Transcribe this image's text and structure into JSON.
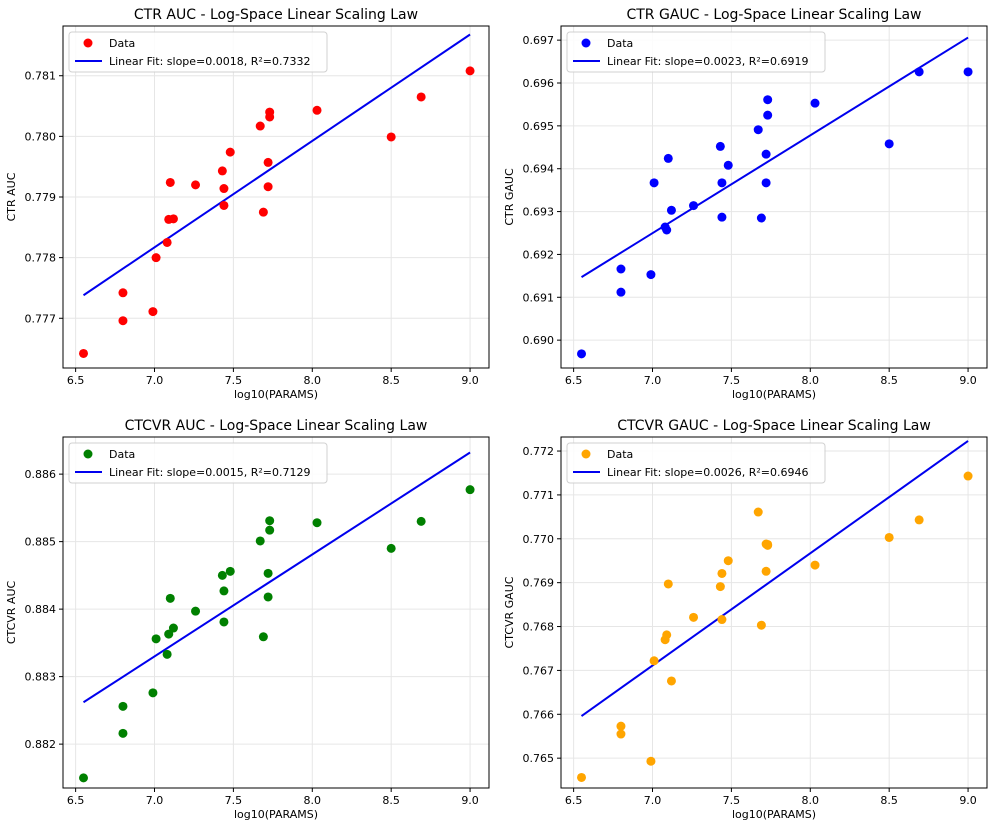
{
  "chart_data": [
    {
      "type": "scatter",
      "title": "CTR AUC - Log-Space Linear Scaling Law",
      "xlabel": "log10(PARAMS)",
      "ylabel": "CTR AUC",
      "xlim": [
        6.42,
        9.12
      ],
      "ylim": [
        0.77618,
        0.78182
      ],
      "xticks": [
        6.5,
        7.0,
        7.5,
        8.0,
        8.5,
        9.0
      ],
      "xtick_labels": [
        "6.5",
        "7.0",
        "7.5",
        "8.0",
        "8.5",
        "9.0"
      ],
      "yticks": [
        0.777,
        0.778,
        0.779,
        0.78,
        0.781
      ],
      "ytick_labels": [
        "0.777",
        "0.778",
        "0.779",
        "0.780",
        "0.781"
      ],
      "grid": true,
      "legend_position": "top-left",
      "point_color": "#ff0000",
      "line_color": "#0000ee",
      "series": [
        {
          "name": "Data",
          "kind": "scatter",
          "points": [
            [
              6.55,
              0.77642
            ],
            [
              6.8,
              0.77742
            ],
            [
              6.8,
              0.77696
            ],
            [
              6.99,
              0.77711
            ],
            [
              7.01,
              0.778
            ],
            [
              7.08,
              0.77825
            ],
            [
              7.09,
              0.77863
            ],
            [
              7.1,
              0.77924
            ],
            [
              7.12,
              0.77864
            ],
            [
              7.26,
              0.7792
            ],
            [
              7.43,
              0.77943
            ],
            [
              7.44,
              0.77914
            ],
            [
              7.44,
              0.77886
            ],
            [
              7.48,
              0.77974
            ],
            [
              7.67,
              0.78017
            ],
            [
              7.69,
              0.77875
            ],
            [
              7.72,
              0.77957
            ],
            [
              7.72,
              0.77917
            ],
            [
              7.73,
              0.7804
            ],
            [
              7.73,
              0.78032
            ],
            [
              8.03,
              0.78043
            ],
            [
              8.5,
              0.77999
            ],
            [
              8.69,
              0.78065
            ],
            [
              9.0,
              0.78108
            ]
          ]
        },
        {
          "name": "Linear Fit: slope=0.0018, R²=0.7332",
          "kind": "line",
          "points": [
            [
              6.55,
              0.77738
            ],
            [
              9.0,
              0.78168
            ]
          ]
        }
      ]
    },
    {
      "type": "scatter",
      "title": "CTR GAUC - Log-Space Linear Scaling Law",
      "xlabel": "log10(PARAMS)",
      "ylabel": "CTR GAUC",
      "xlim": [
        6.42,
        9.12
      ],
      "ylim": [
        0.68935,
        0.69733
      ],
      "xticks": [
        6.5,
        7.0,
        7.5,
        8.0,
        8.5,
        9.0
      ],
      "xtick_labels": [
        "6.5",
        "7.0",
        "7.5",
        "8.0",
        "8.5",
        "9.0"
      ],
      "yticks": [
        0.69,
        0.691,
        0.692,
        0.693,
        0.694,
        0.695,
        0.696,
        0.697
      ],
      "ytick_labels": [
        "0.690",
        "0.691",
        "0.692",
        "0.693",
        "0.694",
        "0.695",
        "0.696",
        "0.697"
      ],
      "grid": true,
      "legend_position": "top-left",
      "point_color": "#0000ff",
      "line_color": "#0000ee",
      "series": [
        {
          "name": "Data",
          "kind": "scatter",
          "points": [
            [
              6.55,
              0.68968
            ],
            [
              6.8,
              0.69166
            ],
            [
              6.8,
              0.69112
            ],
            [
              6.99,
              0.69153
            ],
            [
              7.01,
              0.69367
            ],
            [
              7.08,
              0.69264
            ],
            [
              7.09,
              0.69257
            ],
            [
              7.1,
              0.69424
            ],
            [
              7.12,
              0.69303
            ],
            [
              7.26,
              0.69314
            ],
            [
              7.43,
              0.69452
            ],
            [
              7.44,
              0.69367
            ],
            [
              7.44,
              0.69287
            ],
            [
              7.48,
              0.69408
            ],
            [
              7.67,
              0.69491
            ],
            [
              7.69,
              0.69285
            ],
            [
              7.72,
              0.69434
            ],
            [
              7.72,
              0.69367
            ],
            [
              7.73,
              0.69525
            ],
            [
              7.73,
              0.69561
            ],
            [
              8.03,
              0.69553
            ],
            [
              8.5,
              0.69458
            ],
            [
              8.69,
              0.69626
            ],
            [
              9.0,
              0.69626
            ]
          ]
        },
        {
          "name": "Linear Fit: slope=0.0023, R²=0.6919",
          "kind": "line",
          "points": [
            [
              6.55,
              0.69147
            ],
            [
              9.0,
              0.69706
            ]
          ]
        }
      ]
    },
    {
      "type": "scatter",
      "title": "CTCVR AUC - Log-Space Linear Scaling Law",
      "xlabel": "log10(PARAMS)",
      "ylabel": "CTCVR AUC",
      "xlim": [
        6.42,
        9.12
      ],
      "ylim": [
        0.88135,
        0.88655
      ],
      "xticks": [
        6.5,
        7.0,
        7.5,
        8.0,
        8.5,
        9.0
      ],
      "xtick_labels": [
        "6.5",
        "7.0",
        "7.5",
        "8.0",
        "8.5",
        "9.0"
      ],
      "yticks": [
        0.882,
        0.883,
        0.884,
        0.885,
        0.886
      ],
      "ytick_labels": [
        "0.882",
        "0.883",
        "0.884",
        "0.885",
        "0.886"
      ],
      "grid": true,
      "legend_position": "top-left",
      "point_color": "#008000",
      "line_color": "#0000ee",
      "series": [
        {
          "name": "Data",
          "kind": "scatter",
          "points": [
            [
              6.55,
              0.8815
            ],
            [
              6.8,
              0.88256
            ],
            [
              6.8,
              0.88216
            ],
            [
              6.99,
              0.88276
            ],
            [
              7.01,
              0.88356
            ],
            [
              7.08,
              0.88333
            ],
            [
              7.09,
              0.88363
            ],
            [
              7.1,
              0.88416
            ],
            [
              7.12,
              0.88372
            ],
            [
              7.26,
              0.88397
            ],
            [
              7.43,
              0.8845
            ],
            [
              7.44,
              0.88427
            ],
            [
              7.44,
              0.88381
            ],
            [
              7.48,
              0.88456
            ],
            [
              7.67,
              0.88501
            ],
            [
              7.69,
              0.88359
            ],
            [
              7.72,
              0.88453
            ],
            [
              7.72,
              0.88418
            ],
            [
              7.73,
              0.88517
            ],
            [
              7.73,
              0.88531
            ],
            [
              8.03,
              0.88528
            ],
            [
              8.5,
              0.8849
            ],
            [
              8.69,
              0.8853
            ],
            [
              9.0,
              0.88577
            ]
          ]
        },
        {
          "name": "Linear Fit: slope=0.0015, R²=0.7129",
          "kind": "line",
          "points": [
            [
              6.55,
              0.88262
            ],
            [
              9.0,
              0.88632
            ]
          ]
        }
      ]
    },
    {
      "type": "scatter",
      "title": "CTCVR GAUC - Log-Space Linear Scaling Law",
      "xlabel": "log10(PARAMS)",
      "ylabel": "CTCVR GAUC",
      "xlim": [
        6.42,
        9.12
      ],
      "ylim": [
        0.76432,
        0.77232
      ],
      "xticks": [
        6.5,
        7.0,
        7.5,
        8.0,
        8.5,
        9.0
      ],
      "xtick_labels": [
        "6.5",
        "7.0",
        "7.5",
        "8.0",
        "8.5",
        "9.0"
      ],
      "yticks": [
        0.765,
        0.766,
        0.767,
        0.768,
        0.769,
        0.77,
        0.771,
        0.772
      ],
      "ytick_labels": [
        "0.765",
        "0.766",
        "0.767",
        "0.768",
        "0.769",
        "0.770",
        "0.771",
        "0.772"
      ],
      "grid": true,
      "legend_position": "top-left",
      "point_color": "#ffa500",
      "line_color": "#0000ee",
      "series": [
        {
          "name": "Data",
          "kind": "scatter",
          "points": [
            [
              6.55,
              0.76456
            ],
            [
              6.8,
              0.76573
            ],
            [
              6.8,
              0.76555
            ],
            [
              6.99,
              0.76493
            ],
            [
              7.01,
              0.76722
            ],
            [
              7.08,
              0.7677
            ],
            [
              7.09,
              0.76781
            ],
            [
              7.1,
              0.76897
            ],
            [
              7.12,
              0.76676
            ],
            [
              7.26,
              0.76821
            ],
            [
              7.43,
              0.76891
            ],
            [
              7.44,
              0.76921
            ],
            [
              7.44,
              0.76816
            ],
            [
              7.48,
              0.7695
            ],
            [
              7.67,
              0.77061
            ],
            [
              7.69,
              0.76803
            ],
            [
              7.72,
              0.76926
            ],
            [
              7.72,
              0.76988
            ],
            [
              7.73,
              0.76987
            ],
            [
              7.73,
              0.76985
            ],
            [
              8.03,
              0.7694
            ],
            [
              8.5,
              0.77003
            ],
            [
              8.69,
              0.77043
            ],
            [
              9.0,
              0.77143
            ]
          ]
        },
        {
          "name": "Linear Fit: slope=0.0026, R²=0.6946",
          "kind": "line",
          "points": [
            [
              6.55,
              0.76596
            ],
            [
              9.0,
              0.77223
            ]
          ]
        }
      ]
    }
  ]
}
